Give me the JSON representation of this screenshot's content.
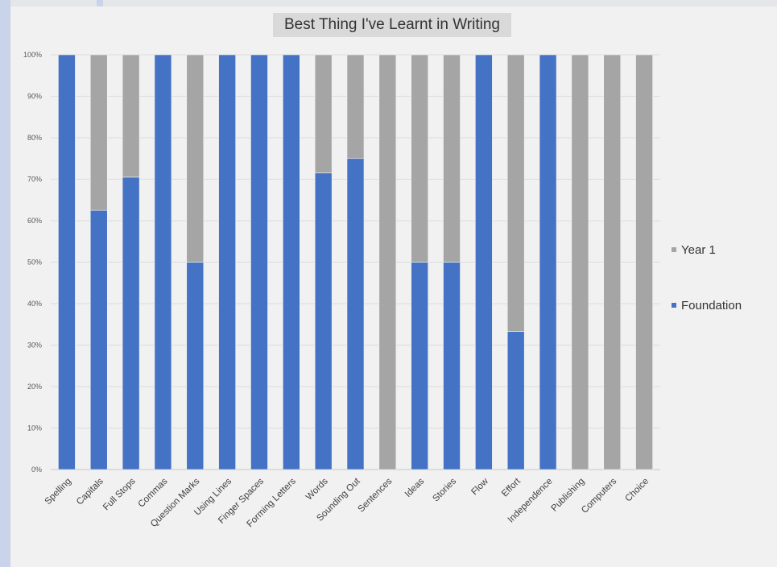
{
  "chart_data": {
    "type": "bar",
    "stacked": true,
    "percent": true,
    "title": "Best Thing I've Learnt in Writing",
    "categories": [
      "Spelling",
      "Capitals",
      "Full Stops",
      "Commas",
      "Question Marks",
      "Using Lines",
      "Finger Spaces",
      "Forming Letters",
      "Words",
      "Sounding Out",
      "Sentences",
      "Ideas",
      "Stories",
      "Flow",
      "Effort",
      "Independence",
      "Publishing",
      "Computers",
      "Choice"
    ],
    "series": [
      {
        "name": "Foundation",
        "color": "#4472c4",
        "values": [
          100,
          62.5,
          70.5,
          100,
          50,
          100,
          100,
          100,
          71.5,
          75,
          0,
          50,
          50,
          100,
          33.3,
          100,
          0,
          0,
          0
        ]
      },
      {
        "name": "Year 1",
        "color": "#a5a5a5",
        "values": [
          0,
          37.5,
          29.5,
          0,
          50,
          0,
          0,
          0,
          28.5,
          25,
          100,
          50,
          50,
          0,
          66.7,
          0,
          100,
          100,
          100
        ]
      }
    ],
    "yticks": [
      "0%",
      "10%",
      "20%",
      "30%",
      "40%",
      "50%",
      "60%",
      "70%",
      "80%",
      "90%",
      "100%"
    ],
    "ylim": [
      0,
      100
    ],
    "legend": [
      {
        "label": "Year 1",
        "color": "#a5a5a5"
      },
      {
        "label": "Foundation",
        "color": "#4472c4"
      }
    ],
    "legend_position": "right",
    "grid": true
  }
}
